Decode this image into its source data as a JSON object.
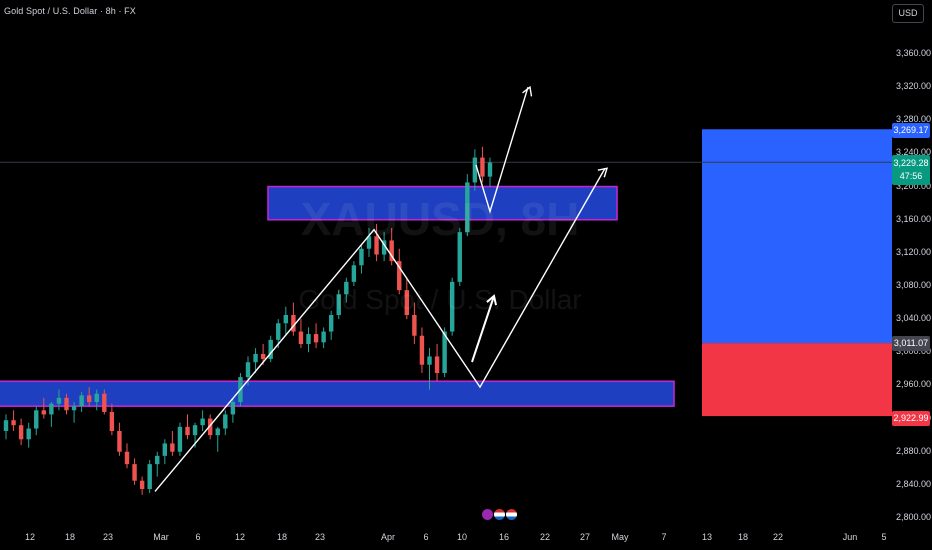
{
  "header": {
    "symbol_title": "Gold Spot / U.S. Dollar · 8h · FX",
    "currency_button": "USD"
  },
  "watermark": {
    "ticker": "XAUUSD, 8H",
    "description": "Gold Spot / U.S. Dollar"
  },
  "price_axis": {
    "ticks": [
      "3,360.00",
      "3,320.00",
      "3,280.00",
      "3,240.00",
      "3,200.00",
      "3,160.00",
      "3,120.00",
      "3,080.00",
      "3,040.00",
      "3,000.00",
      "2,960.00",
      "2,920.00",
      "2,880.00",
      "2,840.00",
      "2,800.00"
    ],
    "tags": {
      "target": "3,269.17",
      "last_price": "3,229.28",
      "countdown": "47:56",
      "entry": "3,011.07",
      "stop": "2,922.99"
    }
  },
  "time_axis": {
    "ticks": [
      "12",
      "18",
      "23",
      "Mar",
      "6",
      "12",
      "18",
      "23",
      "Apr",
      "6",
      "10",
      "16",
      "22",
      "27",
      "May",
      "7",
      "13",
      "18",
      "22",
      "Jun",
      "5"
    ]
  },
  "colors": {
    "bull": "#26a69a",
    "bear": "#ef5350",
    "zone_fill": "#1e3fbf",
    "zone_border": "#c026d3",
    "target_box": "#2962ff",
    "stop_box": "#f23645",
    "last_price": "#089981"
  },
  "event_icons": [
    "lightning-icon",
    "us-flag-icon",
    "us-flag-icon"
  ],
  "chart_data": {
    "type": "candlestick",
    "title": "Gold Spot / U.S. Dollar · 8h · FX",
    "symbol": "XAUUSD",
    "timeframe": "8h",
    "ylim": [
      2800,
      3380
    ],
    "key_levels": {
      "resistance_zone": [
        3160,
        3200
      ],
      "support_zone": [
        2935,
        2965
      ],
      "position_target": 3269.17,
      "position_entry": 3011.07,
      "position_stop": 2922.99,
      "last_price": 3229.28
    },
    "trend_path": [
      {
        "date": "Mar 1",
        "price": 2832
      },
      {
        "date": "Mar 28",
        "price": 3148
      },
      {
        "date": "Apr 12",
        "price": 2958
      },
      {
        "date": "Apr 28",
        "price": 3222
      }
    ],
    "projection_path": [
      {
        "date": "Apr 14",
        "price": 3226
      },
      {
        "date": "Apr 17",
        "price": 3170
      },
      {
        "date": "Apr 21",
        "price": 3320
      }
    ],
    "series": [
      {
        "values": [
          [
            2905,
            2925,
            2895,
            2918
          ],
          [
            2918,
            2930,
            2905,
            2912
          ],
          [
            2912,
            2920,
            2888,
            2895
          ],
          [
            2895,
            2915,
            2885,
            2908
          ],
          [
            2908,
            2935,
            2900,
            2930
          ],
          [
            2930,
            2945,
            2920,
            2925
          ],
          [
            2925,
            2940,
            2910,
            2938
          ],
          [
            2938,
            2955,
            2930,
            2945
          ],
          [
            2945,
            2950,
            2925,
            2930
          ],
          [
            2930,
            2940,
            2915,
            2935
          ],
          [
            2935,
            2952,
            2928,
            2948
          ],
          [
            2948,
            2958,
            2935,
            2940
          ],
          [
            2940,
            2955,
            2930,
            2950
          ],
          [
            2950,
            2955,
            2925,
            2928
          ],
          [
            2928,
            2938,
            2900,
            2905
          ],
          [
            2905,
            2915,
            2875,
            2880
          ],
          [
            2880,
            2890,
            2860,
            2865
          ],
          [
            2865,
            2872,
            2840,
            2845
          ],
          [
            2845,
            2850,
            2828,
            2835
          ],
          [
            2835,
            2870,
            2830,
            2865
          ],
          [
            2865,
            2880,
            2850,
            2875
          ],
          [
            2875,
            2895,
            2865,
            2890
          ],
          [
            2890,
            2905,
            2875,
            2880
          ],
          [
            2880,
            2915,
            2875,
            2910
          ],
          [
            2910,
            2925,
            2895,
            2900
          ],
          [
            2900,
            2915,
            2885,
            2912
          ],
          [
            2912,
            2930,
            2905,
            2920
          ],
          [
            2920,
            2925,
            2895,
            2900
          ],
          [
            2900,
            2910,
            2880,
            2908
          ],
          [
            2908,
            2930,
            2900,
            2925
          ],
          [
            2925,
            2945,
            2915,
            2940
          ],
          [
            2940,
            2975,
            2935,
            2970
          ],
          [
            2970,
            2995,
            2960,
            2988
          ],
          [
            2988,
            3005,
            2975,
            2998
          ],
          [
            2998,
            3010,
            2985,
            2992
          ],
          [
            2992,
            3020,
            2988,
            3015
          ],
          [
            3015,
            3040,
            3005,
            3035
          ],
          [
            3035,
            3055,
            3020,
            3045
          ],
          [
            3045,
            3060,
            3020,
            3025
          ],
          [
            3025,
            3040,
            3005,
            3010
          ],
          [
            3010,
            3030,
            3000,
            3022
          ],
          [
            3022,
            3035,
            3005,
            3012
          ],
          [
            3012,
            3030,
            3005,
            3025
          ],
          [
            3025,
            3050,
            3015,
            3045
          ],
          [
            3045,
            3075,
            3040,
            3070
          ],
          [
            3070,
            3090,
            3060,
            3085
          ],
          [
            3085,
            3110,
            3080,
            3105
          ],
          [
            3105,
            3130,
            3095,
            3125
          ],
          [
            3125,
            3150,
            3115,
            3140
          ],
          [
            3140,
            3155,
            3110,
            3118
          ],
          [
            3118,
            3145,
            3110,
            3135
          ],
          [
            3135,
            3150,
            3105,
            3110
          ],
          [
            3110,
            3125,
            3070,
            3075
          ],
          [
            3075,
            3090,
            3040,
            3045
          ],
          [
            3045,
            3060,
            3010,
            3020
          ],
          [
            3020,
            3030,
            2975,
            2985
          ],
          [
            2985,
            3005,
            2955,
            2995
          ],
          [
            2995,
            3010,
            2965,
            2975
          ],
          [
            2975,
            3030,
            2970,
            3025
          ],
          [
            3025,
            3090,
            3020,
            3085
          ],
          [
            3085,
            3150,
            3080,
            3145
          ],
          [
            3145,
            3215,
            3140,
            3205
          ],
          [
            3205,
            3245,
            3195,
            3235
          ],
          [
            3235,
            3248,
            3205,
            3212
          ],
          [
            3212,
            3235,
            3200,
            3229
          ]
        ]
      }
    ]
  }
}
